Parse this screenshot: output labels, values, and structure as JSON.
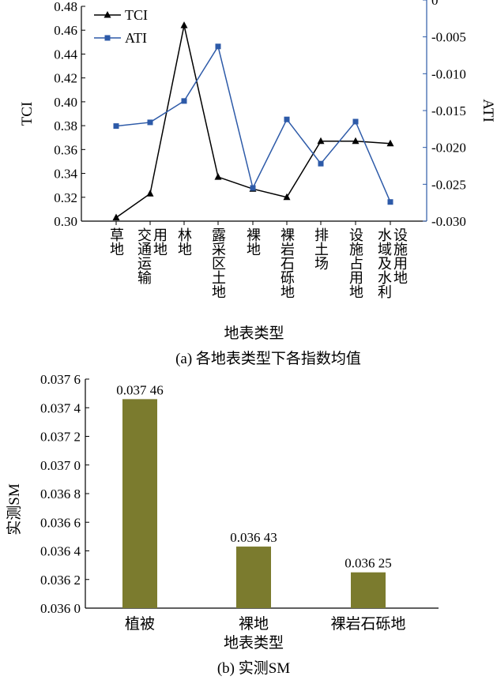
{
  "chart_data": [
    {
      "type": "line",
      "caption": "(a) 各地表类型下各指数均值",
      "xlabel": "地表类型",
      "ylabel": "TCI",
      "y2label": "ATI",
      "categories": [
        "草地",
        "交通运输\n用地",
        "林地",
        "露采区土地",
        "裸地",
        "裸岩石砾地",
        "排土场",
        "设施占用地",
        "水域及水利\n设施用地"
      ],
      "ylim": [
        0.3,
        0.48
      ],
      "yticks": [
        "0.30",
        "0.32",
        "0.34",
        "0.36",
        "0.38",
        "0.40",
        "0.42",
        "0.44",
        "0.46",
        "0.48"
      ],
      "y2lim": [
        -0.03,
        0
      ],
      "y2ticks": [
        "-0.030",
        "-0.025",
        "-0.020",
        "-0.015",
        "-0.010",
        "-0.005",
        "0"
      ],
      "legend_position": "top-left",
      "grid": false,
      "series": [
        {
          "name": "TCI",
          "axis": "left",
          "color": "#000000",
          "marker": "triangle",
          "values": [
            0.303,
            0.323,
            0.464,
            0.337,
            0.327,
            0.32,
            0.367,
            0.367,
            0.365
          ]
        },
        {
          "name": "ATI",
          "axis": "right",
          "color": "#2d5aa8",
          "marker": "square",
          "values": [
            -0.0171,
            -0.0166,
            -0.0137,
            -0.0063,
            -0.0255,
            -0.0162,
            -0.0222,
            -0.0165,
            -0.0274
          ]
        }
      ]
    },
    {
      "type": "bar",
      "caption": "(b) 实测SM",
      "xlabel": "地表类型",
      "ylabel": "实测SM",
      "categories": [
        "植被",
        "裸地",
        "裸岩石砾地"
      ],
      "values": [
        0.03746,
        0.03643,
        0.03625
      ],
      "data_labels": [
        "0.037 46",
        "0.036 43",
        "0.036 25"
      ],
      "ylim": [
        0.036,
        0.0376
      ],
      "yticks": [
        "0.036 0",
        "0.036 2",
        "0.036 4",
        "0.036 6",
        "0.036 8",
        "0.037 0",
        "0.037 2",
        "0.037 4",
        "0.037 6"
      ],
      "bar_color": "#7b7b2e",
      "grid": false
    }
  ]
}
